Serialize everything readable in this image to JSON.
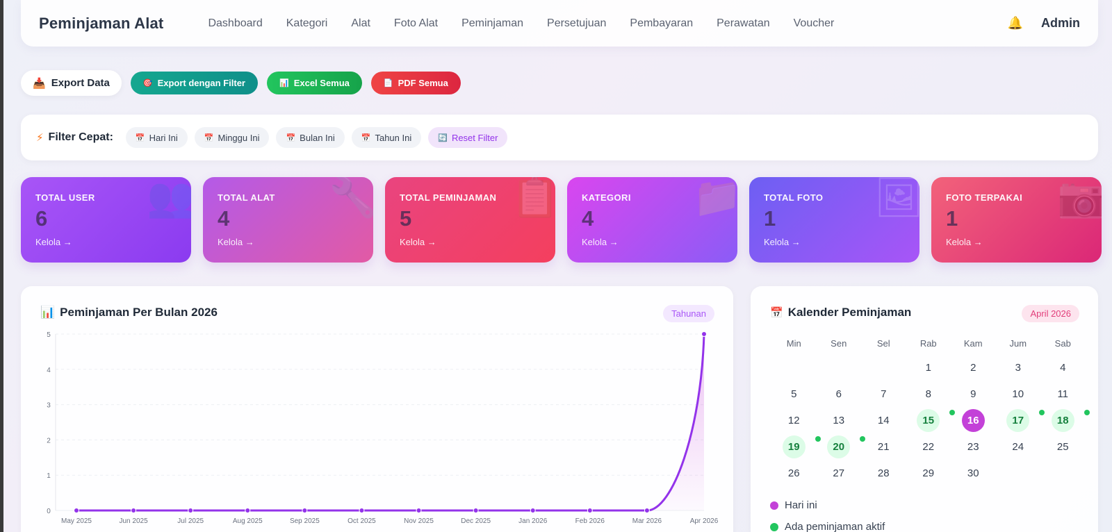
{
  "navbar": {
    "brand": "Peminjaman Alat",
    "links": [
      "Dashboard",
      "Kategori",
      "Alat",
      "Foto Alat",
      "Peminjaman",
      "Persetujuan",
      "Pembayaran",
      "Perawatan",
      "Voucher"
    ],
    "bell_icon": "bell-icon",
    "user": "Admin"
  },
  "export": {
    "label": "Export Data",
    "filter_button": "Export dengan Filter",
    "excel_button": "Excel Semua",
    "pdf_button": "PDF Semua"
  },
  "filter": {
    "title": "Filter Cepat:",
    "chips": [
      "Hari Ini",
      "Minggu Ini",
      "Bulan Ini",
      "Tahun Ini"
    ],
    "reset": "Reset Filter"
  },
  "cards": [
    {
      "label": "TOTAL USER",
      "value": "6",
      "link": "Kelola →",
      "icon": "users-icon"
    },
    {
      "label": "TOTAL ALAT",
      "value": "4",
      "link": "Kelola →",
      "icon": "wrench-icon"
    },
    {
      "label": "TOTAL PEMINJAMAN",
      "value": "5",
      "link": "Kelola →",
      "icon": "clipboard-icon"
    },
    {
      "label": "KATEGORI",
      "value": "4",
      "link": "Kelola →",
      "icon": "folder-icon"
    },
    {
      "label": "TOTAL FOTO",
      "value": "1",
      "link": "Kelola →",
      "icon": "image-icon"
    },
    {
      "label": "FOTO TERPAKAI",
      "value": "1",
      "link": "Kelola →",
      "icon": "camera-icon"
    }
  ],
  "chart_panel": {
    "title": "Peminjaman Per Bulan 2026",
    "badge": "Tahunan"
  },
  "chart_data": {
    "type": "line",
    "x": [
      "May 2025",
      "Jun 2025",
      "Jul 2025",
      "Aug 2025",
      "Sep 2025",
      "Oct 2025",
      "Nov 2025",
      "Dec 2025",
      "Jan 2026",
      "Feb 2026",
      "Mar 2026",
      "Apr 2026"
    ],
    "series": [
      {
        "values": [
          0,
          0,
          0,
          0,
          0,
          0,
          0,
          0,
          0,
          0,
          0,
          5
        ]
      }
    ],
    "ylim": [
      0,
      5
    ],
    "yticks": [
      "0",
      "1",
      "2",
      "3",
      "4",
      "5"
    ],
    "grid": true,
    "color": "#9333ea"
  },
  "calendar": {
    "title": "Kalender Peminjaman",
    "month": "April 2026",
    "weekdays": [
      "Min",
      "Sen",
      "Sel",
      "Rab",
      "Kam",
      "Jum",
      "Sab"
    ],
    "start_offset": 3,
    "days": 30,
    "today": 16,
    "active_days": [
      15,
      17,
      18,
      19,
      20
    ],
    "dot_days": [
      15,
      17,
      18,
      19,
      20
    ],
    "legend": [
      {
        "label": "Hari ini",
        "color": "#c341d8"
      },
      {
        "label": "Ada peminjaman aktif",
        "color": "#22c55e"
      }
    ]
  }
}
